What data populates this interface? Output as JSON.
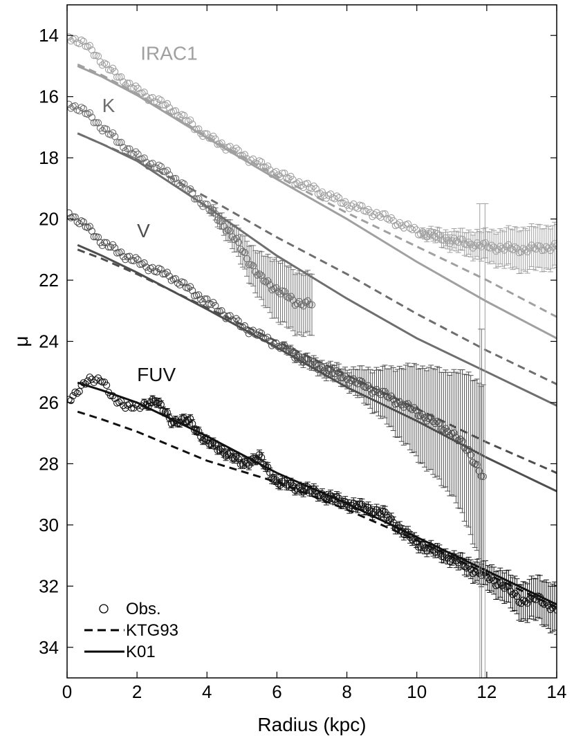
{
  "chart_data": {
    "type": "scatter",
    "title": "",
    "xlabel": "Radius (kpc)",
    "ylabel": "μ",
    "xlim": [
      0,
      14
    ],
    "ylim": [
      35,
      13
    ],
    "y_inverted": true,
    "xticks": [
      0,
      2,
      4,
      6,
      8,
      10,
      12,
      14
    ],
    "yticks": [
      14,
      16,
      18,
      20,
      22,
      24,
      26,
      28,
      30,
      32,
      34
    ],
    "grid": false,
    "legend_position": "bottom-left",
    "legend": [
      {
        "label": "Obs.",
        "style": "circle"
      },
      {
        "label": "KTG93",
        "style": "dashed"
      },
      {
        "label": "K01",
        "style": "solid"
      }
    ],
    "bands": [
      {
        "name": "IRAC1",
        "color": "#a0a0a0",
        "label_pos": [
          2.1,
          14.8
        ],
        "obs_knots": [
          [
            0.05,
            14.05
          ],
          [
            0.4,
            14.2
          ],
          [
            0.8,
            14.6
          ],
          [
            1.2,
            15.1
          ],
          [
            2.0,
            15.8
          ],
          [
            3.0,
            16.4
          ],
          [
            4.0,
            17.3
          ],
          [
            5.0,
            17.9
          ],
          [
            6.0,
            18.5
          ],
          [
            7.0,
            19.0
          ],
          [
            8.0,
            19.5
          ],
          [
            9.0,
            19.9
          ],
          [
            10.0,
            20.4
          ],
          [
            11.0,
            20.7
          ],
          [
            12.0,
            20.9
          ],
          [
            13.0,
            21.0
          ],
          [
            14.0,
            20.9
          ]
        ],
        "err_knots": [
          [
            0,
            0.05
          ],
          [
            10,
            0.1
          ],
          [
            11,
            0.3
          ],
          [
            12,
            0.5
          ],
          [
            13,
            0.7
          ],
          [
            14,
            0.7
          ]
        ],
        "ktg93": [
          [
            0.3,
            14.95
          ],
          [
            1,
            15.3
          ],
          [
            2,
            15.9
          ],
          [
            4,
            17.3
          ],
          [
            6,
            18.6
          ],
          [
            8,
            19.8
          ],
          [
            10,
            20.9
          ],
          [
            12,
            22.0
          ],
          [
            14,
            23.2
          ]
        ],
        "k01": [
          [
            0.3,
            15.0
          ],
          [
            1,
            15.35
          ],
          [
            2,
            15.95
          ],
          [
            4,
            17.35
          ],
          [
            6,
            18.7
          ],
          [
            8,
            20.0
          ],
          [
            10,
            21.4
          ],
          [
            12,
            22.7
          ],
          [
            14,
            23.9
          ]
        ]
      },
      {
        "name": "K",
        "color": "#6e6e6e",
        "label_pos": [
          1.0,
          16.5
        ],
        "obs_knots": [
          [
            0.05,
            16.25
          ],
          [
            0.4,
            16.4
          ],
          [
            1.0,
            17.0
          ],
          [
            1.5,
            17.5
          ],
          [
            2.0,
            17.95
          ],
          [
            2.5,
            18.25
          ],
          [
            3.0,
            18.6
          ],
          [
            3.5,
            19.1
          ],
          [
            4.0,
            19.6
          ],
          [
            4.5,
            20.2
          ],
          [
            5.0,
            21.0
          ],
          [
            5.5,
            21.9
          ],
          [
            6.0,
            22.3
          ],
          [
            6.5,
            22.7
          ],
          [
            7.0,
            22.8
          ]
        ],
        "err_knots": [
          [
            0,
            0.05
          ],
          [
            4,
            0.1
          ],
          [
            5,
            0.5
          ],
          [
            6,
            1.0
          ],
          [
            7,
            1.0
          ]
        ],
        "ktg93": [
          [
            0.3,
            17.2
          ],
          [
            1,
            17.55
          ],
          [
            2,
            18.05
          ],
          [
            4,
            19.3
          ],
          [
            6,
            20.6
          ],
          [
            8,
            21.8
          ],
          [
            10,
            23.1
          ],
          [
            12,
            24.3
          ],
          [
            14,
            25.4
          ]
        ],
        "k01": [
          [
            0.3,
            17.2
          ],
          [
            1,
            17.55
          ],
          [
            2,
            18.1
          ],
          [
            4,
            19.6
          ],
          [
            6,
            21.2
          ],
          [
            8,
            22.6
          ],
          [
            10,
            23.9
          ],
          [
            12,
            25.0
          ],
          [
            14,
            26.1
          ]
        ]
      },
      {
        "name": "V",
        "color": "#4e4e4e",
        "label_pos": [
          2.0,
          20.6
        ],
        "obs_knots": [
          [
            0.05,
            19.8
          ],
          [
            0.5,
            20.2
          ],
          [
            1.0,
            20.75
          ],
          [
            1.5,
            21.1
          ],
          [
            2.0,
            21.4
          ],
          [
            3.0,
            21.9
          ],
          [
            4.0,
            22.7
          ],
          [
            5.0,
            23.5
          ],
          [
            6.0,
            24.1
          ],
          [
            7.0,
            24.75
          ],
          [
            8.0,
            25.2
          ],
          [
            9.0,
            25.7
          ],
          [
            10.0,
            26.3
          ],
          [
            11.0,
            27.0
          ],
          [
            11.5,
            27.6
          ],
          [
            11.9,
            28.5
          ]
        ],
        "err_knots": [
          [
            0,
            0.05
          ],
          [
            6,
            0.1
          ],
          [
            8,
            0.3
          ],
          [
            9,
            0.8
          ],
          [
            10,
            1.5
          ],
          [
            11,
            2.0
          ],
          [
            11.9,
            3.0
          ]
        ],
        "ktg93": [
          [
            0.3,
            21.0
          ],
          [
            1,
            21.3
          ],
          [
            2,
            21.8
          ],
          [
            4,
            22.9
          ],
          [
            6,
            24.0
          ],
          [
            8,
            25.1
          ],
          [
            10,
            26.2
          ],
          [
            12,
            27.3
          ],
          [
            14,
            28.3
          ]
        ],
        "k01": [
          [
            0.3,
            20.85
          ],
          [
            1,
            21.2
          ],
          [
            2,
            21.75
          ],
          [
            4,
            22.95
          ],
          [
            6,
            24.2
          ],
          [
            8,
            25.5
          ],
          [
            10,
            26.6
          ],
          [
            12,
            27.8
          ],
          [
            14,
            28.9
          ]
        ]
      },
      {
        "name": "FUV",
        "color": "#111111",
        "label_pos": [
          2.0,
          25.3
        ],
        "obs_knots": [
          [
            0.05,
            25.9
          ],
          [
            0.3,
            25.6
          ],
          [
            0.6,
            25.3
          ],
          [
            1.0,
            25.2
          ],
          [
            1.3,
            25.9
          ],
          [
            2.0,
            26.2
          ],
          [
            2.5,
            25.9
          ],
          [
            3.0,
            26.6
          ],
          [
            3.5,
            26.6
          ],
          [
            4.0,
            27.3
          ],
          [
            4.5,
            27.6
          ],
          [
            5.0,
            28.0
          ],
          [
            5.5,
            27.8
          ],
          [
            6.0,
            28.6
          ],
          [
            7.0,
            28.9
          ],
          [
            8.0,
            29.3
          ],
          [
            9.0,
            29.6
          ],
          [
            10.0,
            30.6
          ],
          [
            11.0,
            31.1
          ],
          [
            12.0,
            31.7
          ],
          [
            12.5,
            32.0
          ],
          [
            13.0,
            32.5
          ],
          [
            13.5,
            32.4
          ],
          [
            14.0,
            32.8
          ]
        ],
        "err_knots": [
          [
            0,
            0.1
          ],
          [
            11,
            0.2
          ],
          [
            12,
            0.4
          ],
          [
            13,
            0.6
          ],
          [
            14,
            0.8
          ]
        ],
        "ktg93": [
          [
            0.3,
            26.3
          ],
          [
            1,
            26.55
          ],
          [
            2,
            26.95
          ],
          [
            4,
            27.9
          ],
          [
            6,
            28.6
          ],
          [
            8,
            29.5
          ],
          [
            10,
            30.5
          ],
          [
            12,
            31.6
          ],
          [
            14,
            32.7
          ]
        ],
        "k01": [
          [
            0.3,
            25.35
          ],
          [
            1,
            25.6
          ],
          [
            2,
            26.0
          ],
          [
            4,
            27.1
          ],
          [
            6,
            28.3
          ],
          [
            8,
            29.3
          ],
          [
            10,
            30.4
          ],
          [
            12,
            31.5
          ],
          [
            14,
            32.6
          ]
        ]
      }
    ],
    "outlier_error_bars": [
      {
        "x": 11.8,
        "low": 19.5,
        "high": 35.0,
        "color": "#a0a0a0"
      },
      {
        "x": 11.95,
        "low": 19.5,
        "high": 35.0,
        "color": "#a0a0a0"
      },
      {
        "x": 11.85,
        "low": 23.6,
        "high": 35.0,
        "color": "#6e6e6e"
      }
    ]
  }
}
